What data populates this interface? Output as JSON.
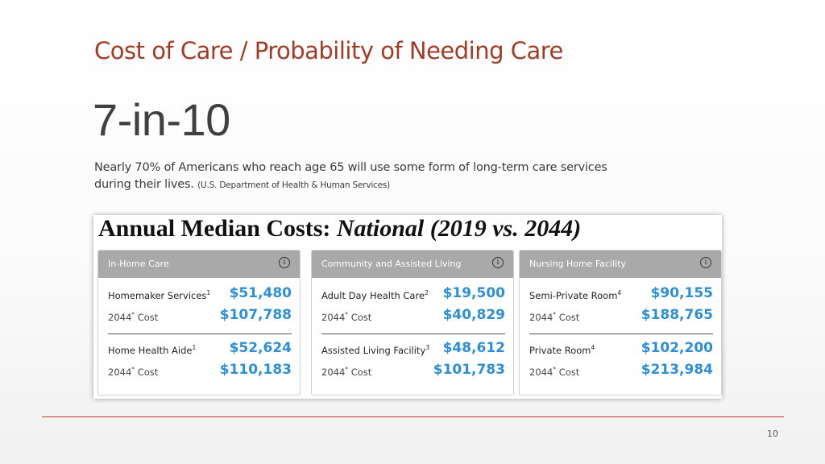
{
  "slide": {
    "title": "Cost of Care / Probability of Needing Care",
    "headline": "7-in-10",
    "description": "Nearly 70% of Americans who reach age 65 will use some form of long-term care services during their lives.",
    "source": "(U.S. Department of Health & Human Services)",
    "page_number": "10"
  },
  "panel": {
    "title_prefix": "Annual Median Costs:",
    "title_italic": "National (2019 vs. 2044)",
    "info_glyph": "i",
    "cost_year_label": "2044",
    "cost_year_mark": "*",
    "cost_word": "Cost",
    "cards": [
      {
        "header": "In-Home Care",
        "items": [
          {
            "name": "Homemaker Services",
            "sup": "1",
            "value_2019": "$51,480",
            "value_2044": "$107,788"
          },
          {
            "name": "Home Health Aide",
            "sup": "1",
            "value_2019": "$52,624",
            "value_2044": "$110,183"
          }
        ]
      },
      {
        "header": "Community and Assisted Living",
        "items": [
          {
            "name": "Adult Day Health Care",
            "sup": "2",
            "value_2019": "$19,500",
            "value_2044": "$40,829"
          },
          {
            "name": "Assisted Living Facility",
            "sup": "3",
            "value_2019": "$48,612",
            "value_2044": "$101,783"
          }
        ]
      },
      {
        "header": "Nursing Home Facility",
        "items": [
          {
            "name": "Semi-Private Room",
            "sup": "4",
            "value_2019": "$90,155",
            "value_2044": "$188,765"
          },
          {
            "name": "Private Room",
            "sup": "4",
            "value_2019": "$102,200",
            "value_2044": "$213,984"
          }
        ]
      }
    ],
    "colors": {
      "header_bg": "#a9a9a9",
      "value_blue": "#2e8fd6",
      "title_red": "#a23c26"
    }
  }
}
